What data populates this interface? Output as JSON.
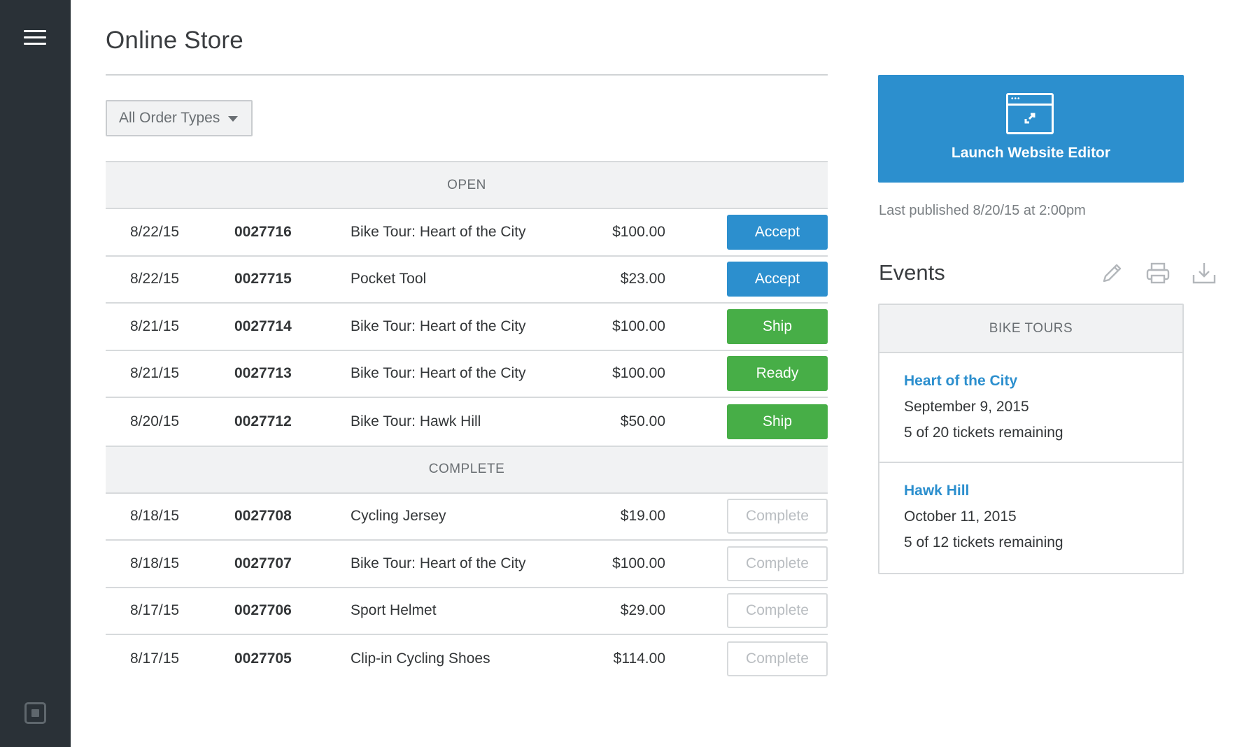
{
  "page": {
    "title": "Online Store"
  },
  "filter": {
    "selected": "All Order Types"
  },
  "orders": {
    "open_label": "OPEN",
    "complete_label": "COMPLETE",
    "open": [
      {
        "date": "8/22/15",
        "number": "0027716",
        "item": "Bike Tour: Heart of the City",
        "price": "$100.00",
        "action": "Accept",
        "action_style": "accept"
      },
      {
        "date": "8/22/15",
        "number": "0027715",
        "item": "Pocket Tool",
        "price": "$23.00",
        "action": "Accept",
        "action_style": "accept"
      },
      {
        "date": "8/21/15",
        "number": "0027714",
        "item": "Bike Tour: Heart of the City",
        "price": "$100.00",
        "action": "Ship",
        "action_style": "green"
      },
      {
        "date": "8/21/15",
        "number": "0027713",
        "item": "Bike Tour: Heart of the City",
        "price": "$100.00",
        "action": "Ready",
        "action_style": "green"
      },
      {
        "date": "8/20/15",
        "number": "0027712",
        "item": "Bike Tour: Hawk Hill",
        "price": "$50.00",
        "action": "Ship",
        "action_style": "green"
      }
    ],
    "complete": [
      {
        "date": "8/18/15",
        "number": "0027708",
        "item": "Cycling Jersey",
        "price": "$19.00",
        "action": "Complete",
        "action_style": "complete"
      },
      {
        "date": "8/18/15",
        "number": "0027707",
        "item": "Bike Tour: Heart of the City",
        "price": "$100.00",
        "action": "Complete",
        "action_style": "complete"
      },
      {
        "date": "8/17/15",
        "number": "0027706",
        "item": "Sport Helmet",
        "price": "$29.00",
        "action": "Complete",
        "action_style": "complete"
      },
      {
        "date": "8/17/15",
        "number": "0027705",
        "item": "Clip-in Cycling Shoes",
        "price": "$114.00",
        "action": "Complete",
        "action_style": "complete"
      }
    ]
  },
  "launch": {
    "label": "Launch Website Editor",
    "icon": "browser-window-icon"
  },
  "publish": {
    "status": "Last published 8/20/15 at 2:00pm"
  },
  "events": {
    "title": "Events",
    "tools": [
      "pencil-icon",
      "printer-icon",
      "download-icon"
    ],
    "category": "BIKE TOURS",
    "items": [
      {
        "name": "Heart of the City",
        "date": "September 9, 2015",
        "tickets": "5 of 20 tickets remaining"
      },
      {
        "name": "Hawk Hill",
        "date": "October 11, 2015",
        "tickets": "5 of 12 tickets remaining"
      }
    ]
  },
  "colors": {
    "sidebar": "#2a3137",
    "accent_blue": "#2c8fce",
    "accent_green": "#47ae47"
  }
}
